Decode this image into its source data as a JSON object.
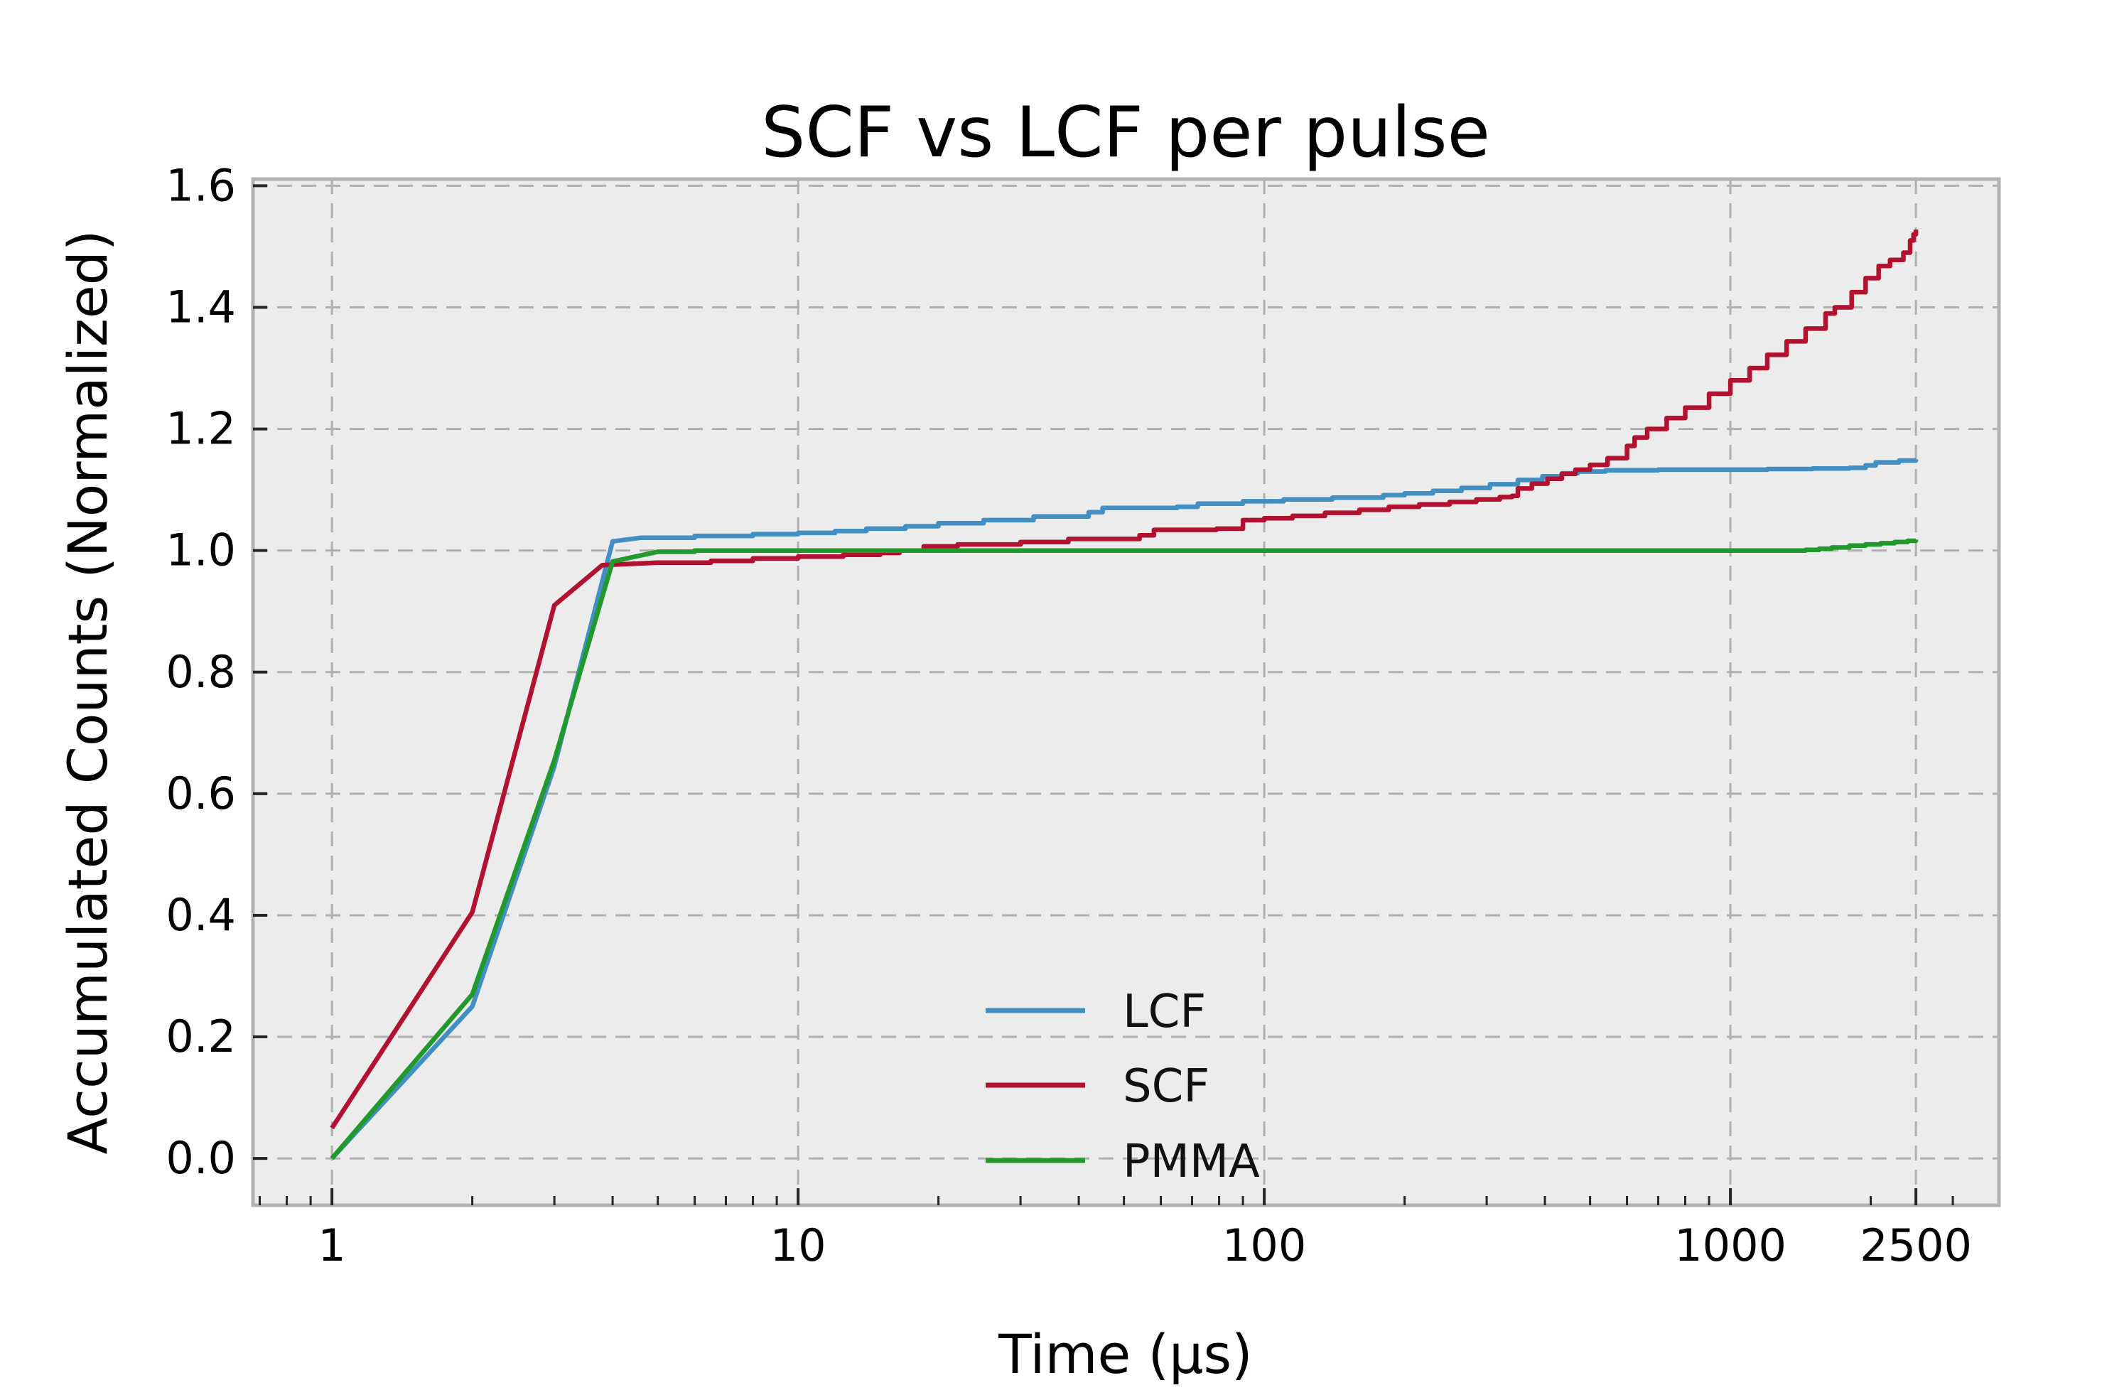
{
  "chart_data": {
    "type": "line",
    "title": "SCF vs LCF per pulse",
    "xlabel": "Time (μs)",
    "ylabel": "Accumulated Counts (Normalized)",
    "x_scale": "log",
    "y_scale": "linear",
    "xlim": [
      0.677,
      3768
    ],
    "ylim": [
      -0.077,
      1.611
    ],
    "grid": {
      "show": true,
      "style": "dashed",
      "color": "#b0b0b0"
    },
    "background": {
      "figure": "#ffffff",
      "axes": "#ececec",
      "frame": "#b3b3b3",
      "tick": "#262626"
    },
    "x_ticks": [
      {
        "value": 1,
        "label": "1"
      },
      {
        "value": 10,
        "label": "10"
      },
      {
        "value": 100,
        "label": "100"
      },
      {
        "value": 1000,
        "label": "1000"
      },
      {
        "value": 2500,
        "label": "2500"
      }
    ],
    "y_ticks": [
      {
        "value": 0.0,
        "label": "0.0"
      },
      {
        "value": 0.2,
        "label": "0.2"
      },
      {
        "value": 0.4,
        "label": "0.4"
      },
      {
        "value": 0.6,
        "label": "0.6"
      },
      {
        "value": 0.8,
        "label": "0.8"
      },
      {
        "value": 1.0,
        "label": "1.0"
      },
      {
        "value": 1.2,
        "label": "1.2"
      },
      {
        "value": 1.4,
        "label": "1.4"
      },
      {
        "value": 1.6,
        "label": "1.6"
      }
    ],
    "legend": {
      "location": "lower center-right inside",
      "entries": [
        "LCF",
        "SCF",
        "PMMA"
      ]
    },
    "series": [
      {
        "name": "LCF",
        "color": "#428fc4",
        "points": [
          [
            1,
            0.0
          ],
          [
            2,
            0.25
          ],
          [
            3,
            0.645
          ],
          [
            4,
            1.015
          ],
          [
            4.6,
            1.021
          ],
          [
            6,
            1.024
          ],
          [
            8,
            1.027
          ],
          [
            10,
            1.029
          ],
          [
            12,
            1.032
          ],
          [
            14,
            1.036
          ],
          [
            17,
            1.04
          ],
          [
            20,
            1.045
          ],
          [
            25,
            1.05
          ],
          [
            32,
            1.056
          ],
          [
            42,
            1.063
          ],
          [
            45,
            1.07
          ],
          [
            65,
            1.072
          ],
          [
            72,
            1.077
          ],
          [
            90,
            1.081
          ],
          [
            110,
            1.084
          ],
          [
            140,
            1.087
          ],
          [
            180,
            1.091
          ],
          [
            200,
            1.094
          ],
          [
            230,
            1.098
          ],
          [
            265,
            1.103
          ],
          [
            305,
            1.109
          ],
          [
            350,
            1.116
          ],
          [
            395,
            1.122
          ],
          [
            435,
            1.127
          ],
          [
            470,
            1.13
          ],
          [
            540,
            1.132
          ],
          [
            700,
            1.133
          ],
          [
            900,
            1.133
          ],
          [
            1200,
            1.134
          ],
          [
            1500,
            1.135
          ],
          [
            1800,
            1.136
          ],
          [
            1950,
            1.14
          ],
          [
            2050,
            1.145
          ],
          [
            2300,
            1.148
          ],
          [
            2500,
            1.15
          ]
        ]
      },
      {
        "name": "SCF",
        "color": "#b2122f",
        "points": [
          [
            1,
            0.05
          ],
          [
            2,
            0.405
          ],
          [
            3,
            0.91
          ],
          [
            3.8,
            0.976
          ],
          [
            5,
            0.98
          ],
          [
            6.5,
            0.983
          ],
          [
            8,
            0.987
          ],
          [
            10,
            0.99
          ],
          [
            12.5,
            0.993
          ],
          [
            15,
            0.996
          ],
          [
            16.5,
            1.0
          ],
          [
            18.6,
            1.007
          ],
          [
            22,
            1.01
          ],
          [
            30,
            1.014
          ],
          [
            38,
            1.019
          ],
          [
            54,
            1.025
          ],
          [
            58,
            1.034
          ],
          [
            79,
            1.036
          ],
          [
            90,
            1.05
          ],
          [
            100,
            1.053
          ],
          [
            115,
            1.057
          ],
          [
            135,
            1.062
          ],
          [
            160,
            1.067
          ],
          [
            185,
            1.072
          ],
          [
            215,
            1.076
          ],
          [
            250,
            1.08
          ],
          [
            285,
            1.084
          ],
          [
            320,
            1.088
          ],
          [
            340,
            1.09
          ],
          [
            350,
            1.102
          ],
          [
            375,
            1.11
          ],
          [
            405,
            1.118
          ],
          [
            435,
            1.126
          ],
          [
            465,
            1.133
          ],
          [
            500,
            1.141
          ],
          [
            545,
            1.152
          ],
          [
            600,
            1.172
          ],
          [
            623,
            1.186
          ],
          [
            663,
            1.2
          ],
          [
            730,
            1.218
          ],
          [
            800,
            1.235
          ],
          [
            900,
            1.258
          ],
          [
            1000,
            1.28
          ],
          [
            1100,
            1.3
          ],
          [
            1200,
            1.322
          ],
          [
            1320,
            1.344
          ],
          [
            1450,
            1.365
          ],
          [
            1600,
            1.39
          ],
          [
            1675,
            1.4
          ],
          [
            1820,
            1.425
          ],
          [
            1950,
            1.448
          ],
          [
            2080,
            1.468
          ],
          [
            2200,
            1.478
          ],
          [
            2350,
            1.49
          ],
          [
            2430,
            1.51
          ],
          [
            2470,
            1.52
          ],
          [
            2500,
            1.528
          ]
        ]
      },
      {
        "name": "PMMA",
        "color": "#22992d",
        "points": [
          [
            1,
            0.0
          ],
          [
            2,
            0.27
          ],
          [
            3,
            0.655
          ],
          [
            4,
            0.982
          ],
          [
            5,
            0.998
          ],
          [
            6,
            1.0
          ],
          [
            20,
            1.0
          ],
          [
            60,
            1.0
          ],
          [
            150,
            1.0
          ],
          [
            400,
            1.0
          ],
          [
            800,
            1.0
          ],
          [
            1200,
            1.0
          ],
          [
            1450,
            1.001
          ],
          [
            1550,
            1.003
          ],
          [
            1650,
            1.005
          ],
          [
            1800,
            1.008
          ],
          [
            1950,
            1.01
          ],
          [
            2100,
            1.012
          ],
          [
            2250,
            1.014
          ],
          [
            2400,
            1.016
          ],
          [
            2500,
            1.018
          ]
        ]
      }
    ]
  }
}
